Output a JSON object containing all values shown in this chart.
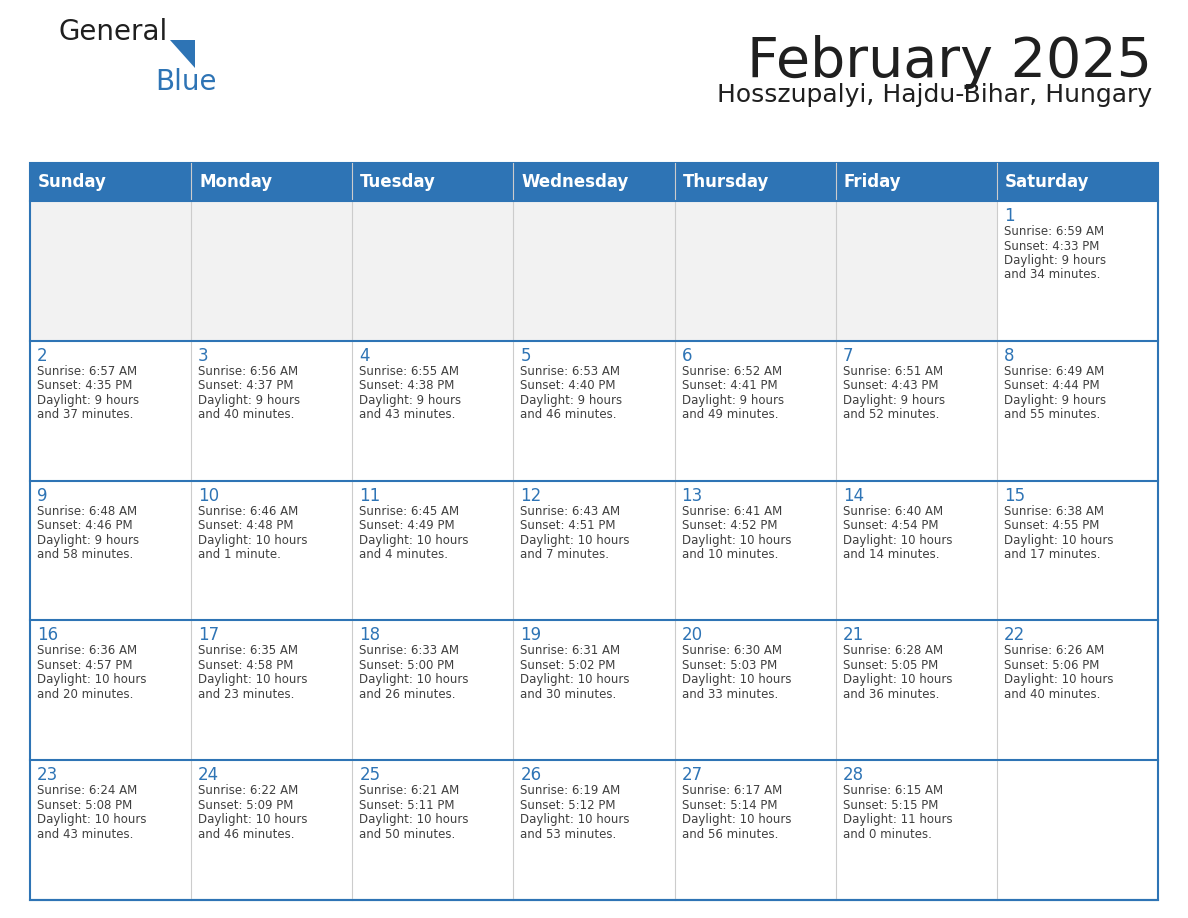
{
  "title": "February 2025",
  "subtitle": "Hosszupalyi, Hajdu-Bihar, Hungary",
  "days_of_week": [
    "Sunday",
    "Monday",
    "Tuesday",
    "Wednesday",
    "Thursday",
    "Friday",
    "Saturday"
  ],
  "header_bg": "#2E74B5",
  "header_text": "#FFFFFF",
  "cell_bg_light": "#FFFFFF",
  "cell_bg_gray": "#F2F2F2",
  "day_number_color": "#2E74B5",
  "text_color": "#404040",
  "border_color": "#2E74B5",
  "title_color": "#1F1F1F",
  "logo_general_color": "#1F1F1F",
  "logo_blue_color": "#2E74B5",
  "logo_triangle_color": "#2E74B5",
  "calendar_data": [
    [
      null,
      null,
      null,
      null,
      null,
      null,
      {
        "day": 1,
        "sunrise": "6:59 AM",
        "sunset": "4:33 PM",
        "daylight": "9 hours and 34 minutes."
      }
    ],
    [
      {
        "day": 2,
        "sunrise": "6:57 AM",
        "sunset": "4:35 PM",
        "daylight": "9 hours and 37 minutes."
      },
      {
        "day": 3,
        "sunrise": "6:56 AM",
        "sunset": "4:37 PM",
        "daylight": "9 hours and 40 minutes."
      },
      {
        "day": 4,
        "sunrise": "6:55 AM",
        "sunset": "4:38 PM",
        "daylight": "9 hours and 43 minutes."
      },
      {
        "day": 5,
        "sunrise": "6:53 AM",
        "sunset": "4:40 PM",
        "daylight": "9 hours and 46 minutes."
      },
      {
        "day": 6,
        "sunrise": "6:52 AM",
        "sunset": "4:41 PM",
        "daylight": "9 hours and 49 minutes."
      },
      {
        "day": 7,
        "sunrise": "6:51 AM",
        "sunset": "4:43 PM",
        "daylight": "9 hours and 52 minutes."
      },
      {
        "day": 8,
        "sunrise": "6:49 AM",
        "sunset": "4:44 PM",
        "daylight": "9 hours and 55 minutes."
      }
    ],
    [
      {
        "day": 9,
        "sunrise": "6:48 AM",
        "sunset": "4:46 PM",
        "daylight": "9 hours and 58 minutes."
      },
      {
        "day": 10,
        "sunrise": "6:46 AM",
        "sunset": "4:48 PM",
        "daylight": "10 hours and 1 minute."
      },
      {
        "day": 11,
        "sunrise": "6:45 AM",
        "sunset": "4:49 PM",
        "daylight": "10 hours and 4 minutes."
      },
      {
        "day": 12,
        "sunrise": "6:43 AM",
        "sunset": "4:51 PM",
        "daylight": "10 hours and 7 minutes."
      },
      {
        "day": 13,
        "sunrise": "6:41 AM",
        "sunset": "4:52 PM",
        "daylight": "10 hours and 10 minutes."
      },
      {
        "day": 14,
        "sunrise": "6:40 AM",
        "sunset": "4:54 PM",
        "daylight": "10 hours and 14 minutes."
      },
      {
        "day": 15,
        "sunrise": "6:38 AM",
        "sunset": "4:55 PM",
        "daylight": "10 hours and 17 minutes."
      }
    ],
    [
      {
        "day": 16,
        "sunrise": "6:36 AM",
        "sunset": "4:57 PM",
        "daylight": "10 hours and 20 minutes."
      },
      {
        "day": 17,
        "sunrise": "6:35 AM",
        "sunset": "4:58 PM",
        "daylight": "10 hours and 23 minutes."
      },
      {
        "day": 18,
        "sunrise": "6:33 AM",
        "sunset": "5:00 PM",
        "daylight": "10 hours and 26 minutes."
      },
      {
        "day": 19,
        "sunrise": "6:31 AM",
        "sunset": "5:02 PM",
        "daylight": "10 hours and 30 minutes."
      },
      {
        "day": 20,
        "sunrise": "6:30 AM",
        "sunset": "5:03 PM",
        "daylight": "10 hours and 33 minutes."
      },
      {
        "day": 21,
        "sunrise": "6:28 AM",
        "sunset": "5:05 PM",
        "daylight": "10 hours and 36 minutes."
      },
      {
        "day": 22,
        "sunrise": "6:26 AM",
        "sunset": "5:06 PM",
        "daylight": "10 hours and 40 minutes."
      }
    ],
    [
      {
        "day": 23,
        "sunrise": "6:24 AM",
        "sunset": "5:08 PM",
        "daylight": "10 hours and 43 minutes."
      },
      {
        "day": 24,
        "sunrise": "6:22 AM",
        "sunset": "5:09 PM",
        "daylight": "10 hours and 46 minutes."
      },
      {
        "day": 25,
        "sunrise": "6:21 AM",
        "sunset": "5:11 PM",
        "daylight": "10 hours and 50 minutes."
      },
      {
        "day": 26,
        "sunrise": "6:19 AM",
        "sunset": "5:12 PM",
        "daylight": "10 hours and 53 minutes."
      },
      {
        "day": 27,
        "sunrise": "6:17 AM",
        "sunset": "5:14 PM",
        "daylight": "10 hours and 56 minutes."
      },
      {
        "day": 28,
        "sunrise": "6:15 AM",
        "sunset": "5:15 PM",
        "daylight": "11 hours and 0 minutes."
      },
      null
    ]
  ]
}
